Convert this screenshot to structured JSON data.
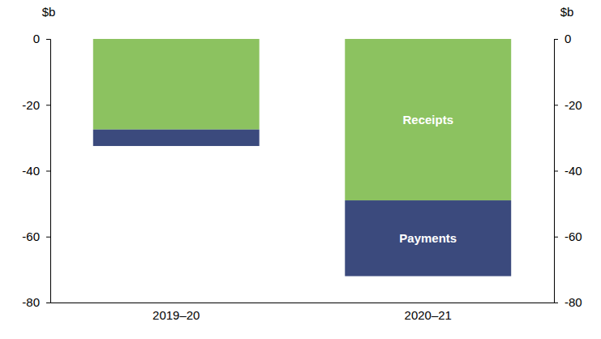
{
  "chart_data": {
    "type": "bar",
    "stacked": true,
    "y_label": "$b",
    "y2_label": "$b",
    "categories": [
      "2019–20",
      "2020–21"
    ],
    "series": [
      {
        "name": "Receipts",
        "color": "#8cc260",
        "values": [
          -27.5,
          -49
        ]
      },
      {
        "name": "Payments",
        "color": "#3b4a7d",
        "values": [
          -5,
          -23
        ]
      }
    ],
    "ylim": [
      -80,
      0
    ],
    "yticks": [
      -80,
      -60,
      -40,
      -20,
      0
    ],
    "y2lim": [
      -80,
      0
    ],
    "y2ticks": [
      -80,
      -60,
      -40,
      -20,
      0
    ],
    "grid": false
  }
}
